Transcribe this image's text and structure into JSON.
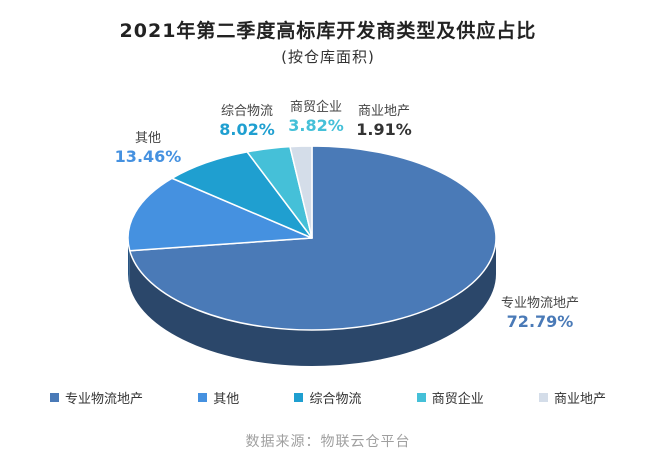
{
  "chart_data": {
    "type": "pie",
    "title": "2021年第二季度高标库开发商类型及供应占比",
    "subtitle": "(按仓库面积)",
    "unit": "%",
    "slices": [
      {
        "name": "专业物流地产",
        "value": 72.79,
        "label": "72.79%",
        "color": "#4a7ab7"
      },
      {
        "name": "其他",
        "value": 13.46,
        "label": "13.46%",
        "color": "#4591e0"
      },
      {
        "name": "综合物流",
        "value": 8.02,
        "label": "8.02%",
        "color": "#1f9fd0"
      },
      {
        "name": "商贸企业",
        "value": 3.82,
        "label": "3.82%",
        "color": "#45c0d8"
      },
      {
        "name": "商业地产",
        "value": 1.91,
        "label": "1.91%",
        "color": "#d4dde9"
      }
    ],
    "legend": [
      "专业物流地产",
      "其他",
      "综合物流",
      "商贸企业",
      "商业地产"
    ],
    "legend_position": "bottom"
  },
  "source": "数据来源：物联云仓平台"
}
